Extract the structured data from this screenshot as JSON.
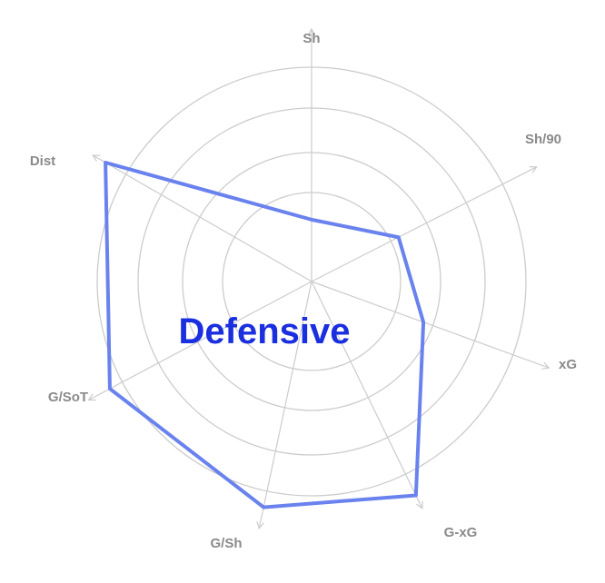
{
  "chart_data": {
    "type": "radar",
    "center_label": "Defensive",
    "axes": [
      {
        "name": "Sh",
        "value": 0.26
      },
      {
        "name": "Sh/90",
        "value": 0.41
      },
      {
        "name": "xG",
        "value": 0.5
      },
      {
        "name": "G-xG",
        "value": 1.0
      },
      {
        "name": "G/Sh",
        "value": 0.97
      },
      {
        "name": "G/SoT",
        "value": 0.96
      },
      {
        "name": "Dist",
        "value": 1.0
      }
    ],
    "rings": 4,
    "grid": true,
    "colors": {
      "polygon_stroke": "#6a82ee",
      "label_text": "#8a8a8a",
      "center_text": "#1a2fe0",
      "grid": "#cccccc"
    }
  }
}
